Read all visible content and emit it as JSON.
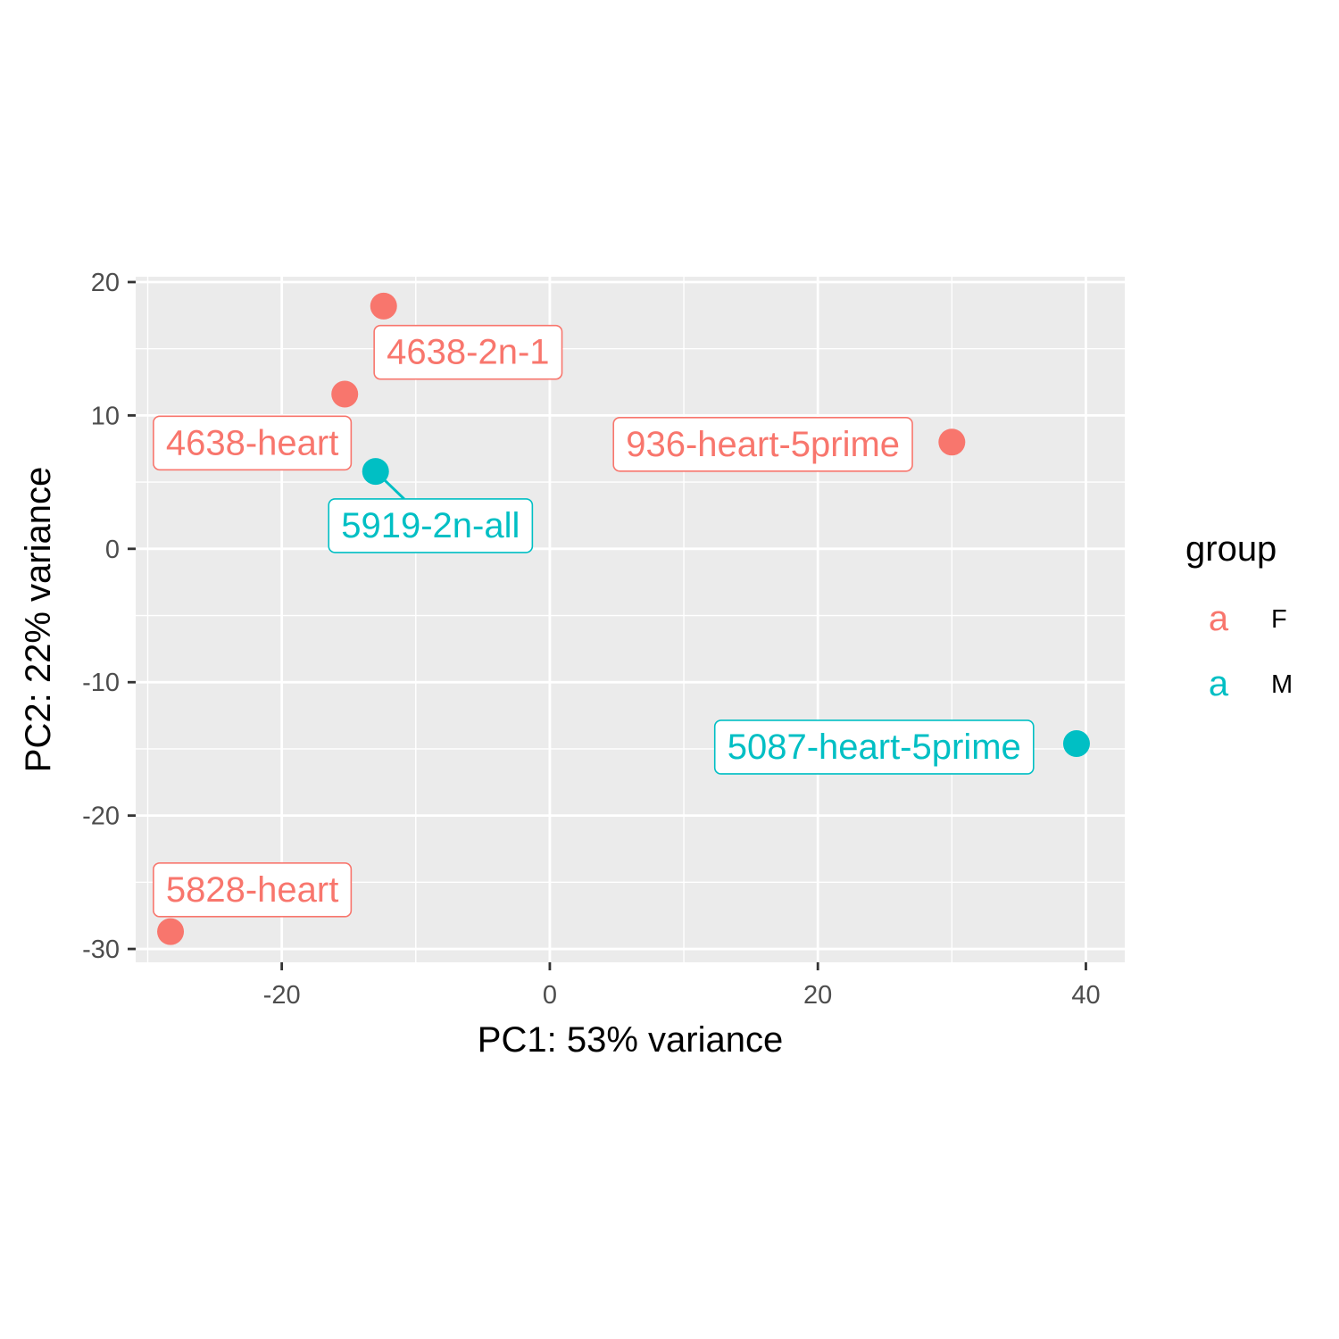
{
  "chart_data": {
    "type": "scatter",
    "xlabel": "PC1: 53% variance",
    "ylabel": "PC2: 22% variance",
    "xlim": [
      -30.9,
      42.9
    ],
    "ylim": [
      -31.0,
      20.4
    ],
    "x_ticks": [
      -20,
      0,
      20,
      40
    ],
    "y_ticks": [
      -30,
      -20,
      -10,
      0,
      10,
      20
    ],
    "x_tick_labels": [
      "-20",
      "0",
      "20",
      "40"
    ],
    "y_tick_labels": [
      "-30",
      "-20",
      "-10",
      "0",
      "10",
      "20"
    ],
    "grid": true,
    "legend": {
      "title": "group",
      "placement": "right",
      "key_glyph": "a",
      "entries": [
        {
          "label": "F",
          "color": "#F8766D"
        },
        {
          "label": "M",
          "color": "#00BFC4"
        }
      ]
    },
    "points": [
      {
        "label": "4638-2n-1",
        "x": -12.4,
        "y": 18.2,
        "group": "F",
        "label_x": -6.1,
        "label_y": 14.8
      },
      {
        "label": "4638-heart",
        "x": -15.3,
        "y": 11.6,
        "group": "F",
        "label_x": -22.2,
        "label_y": 8.0
      },
      {
        "label": "936-heart-5prime",
        "x": 30.0,
        "y": 8.0,
        "group": "F",
        "label_x": 15.9,
        "label_y": 7.9
      },
      {
        "label": "5919-2n-all",
        "x": -13.0,
        "y": 5.8,
        "group": "M",
        "label_x": -8.9,
        "label_y": 1.8,
        "segment": true
      },
      {
        "label": "5087-heart-5prime",
        "x": 39.3,
        "y": -14.6,
        "group": "M",
        "label_x": 24.2,
        "label_y": -14.8
      },
      {
        "label": "5828-heart",
        "x": -28.3,
        "y": -28.7,
        "group": "F",
        "label_x": -22.2,
        "label_y": -25.5
      }
    ],
    "colors": {
      "F": "#F8766D",
      "M": "#00BFC4"
    }
  }
}
